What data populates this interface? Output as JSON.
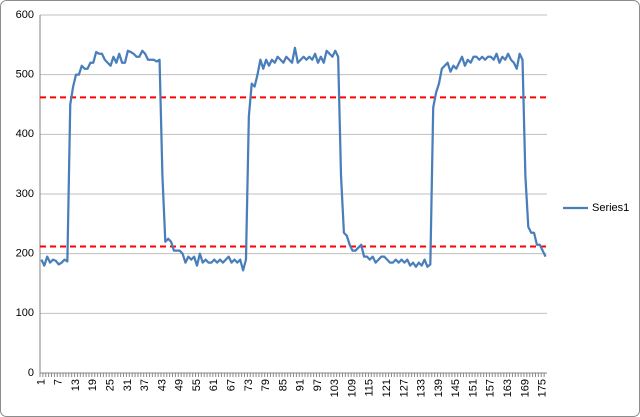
{
  "chart_data": {
    "type": "line",
    "categories": [
      1,
      null,
      null,
      null,
      null,
      null,
      7,
      null,
      null,
      null,
      null,
      null,
      13,
      null,
      null,
      null,
      null,
      null,
      19,
      null,
      null,
      null,
      null,
      null,
      25,
      null,
      null,
      null,
      null,
      null,
      31,
      null,
      null,
      null,
      null,
      null,
      37,
      null,
      null,
      null,
      null,
      null,
      43,
      null,
      null,
      null,
      null,
      null,
      49,
      null,
      null,
      null,
      null,
      null,
      55,
      null,
      null,
      null,
      null,
      null,
      61,
      null,
      null,
      null,
      null,
      null,
      67,
      null,
      null,
      null,
      null,
      null,
      73,
      null,
      null,
      null,
      null,
      null,
      79,
      null,
      null,
      null,
      null,
      null,
      85,
      null,
      null,
      null,
      null,
      null,
      91,
      null,
      null,
      null,
      null,
      null,
      97,
      null,
      null,
      null,
      null,
      null,
      103,
      null,
      null,
      null,
      null,
      null,
      109,
      null,
      null,
      null,
      null,
      null,
      115,
      null,
      null,
      null,
      null,
      null,
      121,
      null,
      null,
      null,
      null,
      null,
      127,
      null,
      null,
      null,
      null,
      null,
      133,
      null,
      null,
      null,
      null,
      null,
      139,
      null,
      null,
      null,
      null,
      null,
      145,
      null,
      null,
      null,
      null,
      null,
      151,
      null,
      null,
      null,
      null,
      null,
      157,
      null,
      null,
      null,
      null,
      null,
      163,
      null,
      null,
      null,
      null,
      null,
      169,
      null,
      null,
      null,
      null,
      null,
      175,
      null
    ],
    "series": [
      {
        "name": "Series1",
        "color": "#4a7ebb",
        "values": [
          190,
          180,
          195,
          185,
          190,
          188,
          182,
          185,
          190,
          187,
          450,
          480,
          500,
          500,
          515,
          510,
          510,
          520,
          520,
          538,
          535,
          535,
          525,
          520,
          515,
          530,
          520,
          535,
          520,
          520,
          540,
          538,
          535,
          530,
          530,
          540,
          535,
          525,
          525,
          525,
          522,
          525,
          330,
          220,
          225,
          220,
          205,
          205,
          205,
          200,
          185,
          195,
          190,
          195,
          180,
          200,
          185,
          190,
          185,
          185,
          190,
          185,
          190,
          185,
          190,
          195,
          185,
          190,
          185,
          190,
          172,
          190,
          430,
          485,
          480,
          500,
          525,
          510,
          525,
          515,
          525,
          520,
          530,
          525,
          520,
          530,
          525,
          520,
          545,
          520,
          525,
          530,
          525,
          530,
          525,
          535,
          520,
          530,
          520,
          540,
          535,
          530,
          540,
          530,
          330,
          235,
          230,
          215,
          205,
          205,
          210,
          215,
          195,
          195,
          190,
          195,
          185,
          190,
          195,
          195,
          190,
          185,
          185,
          190,
          185,
          190,
          185,
          190,
          180,
          185,
          178,
          185,
          180,
          190,
          178,
          182,
          445,
          470,
          485,
          510,
          515,
          520,
          505,
          515,
          510,
          520,
          530,
          515,
          525,
          520,
          530,
          530,
          525,
          530,
          525,
          530,
          530,
          525,
          535,
          520,
          530,
          525,
          535,
          525,
          520,
          510,
          535,
          525,
          330,
          245,
          235,
          235,
          215,
          215,
          205,
          195
        ]
      }
    ],
    "ylim": [
      0,
      600
    ],
    "yticks": [
      0,
      100,
      200,
      300,
      400,
      500,
      600
    ],
    "grid": true,
    "hlines": [
      462,
      212
    ],
    "hline_color": "#ff0000",
    "legend": "right"
  }
}
